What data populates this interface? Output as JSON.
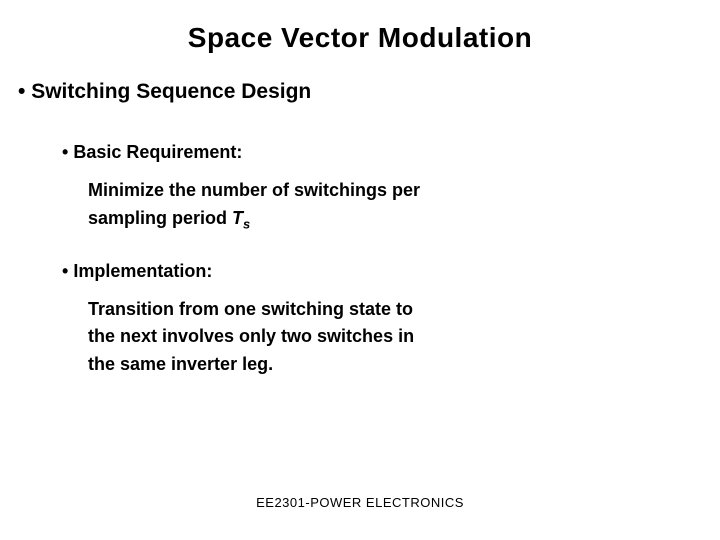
{
  "title": {
    "text": "Space Vector Modulation",
    "fontsize": 28,
    "color": "#000000"
  },
  "heading1": {
    "bullet": "•",
    "text": "Switching Sequence Design",
    "fontsize": 21
  },
  "sub1": {
    "bullet": "•",
    "text": "Basic Requirement:",
    "fontsize": 18
  },
  "body1": {
    "line1": "Minimize the number of switchings per",
    "line2_a": "sampling period ",
    "line2_var": "T",
    "line2_sub": "s",
    "fontsize": 18
  },
  "sub2": {
    "bullet": "•",
    "text": "Implementation:",
    "fontsize": 18
  },
  "body2": {
    "line1": "Transition from one switching state to",
    "line2": "the next involves only two switches in",
    "line3": "the same inverter leg.",
    "fontsize": 18
  },
  "footer": {
    "text": "EE2301-POWER ELECTRONICS",
    "fontsize": 13,
    "color": "#000000"
  }
}
